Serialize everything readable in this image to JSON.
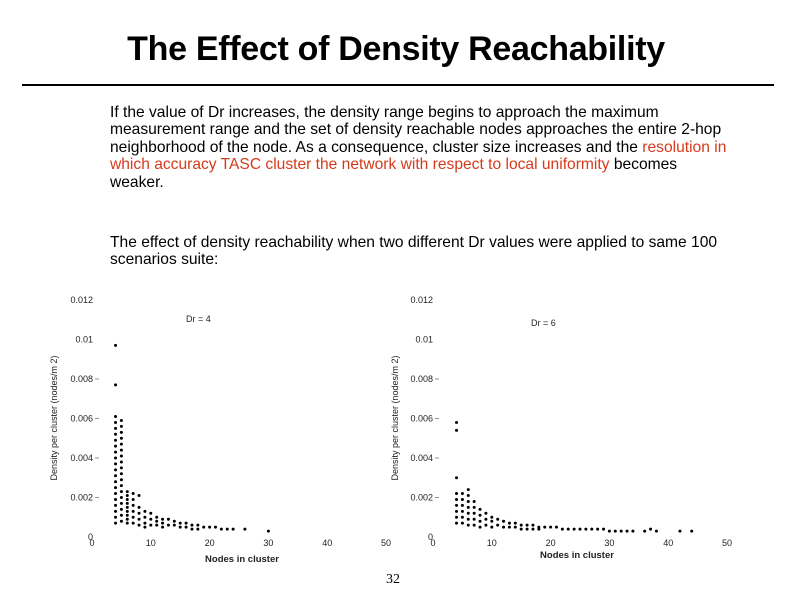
{
  "slide": {
    "title": "The Effect of Density Reachability",
    "para1_before": "If the value of Dr increases, the density range begins to approach the maximum measurement range and the set of density reachable nodes approaches the entire 2-hop neighborhood of the node. As a consequence, cluster size increases and the ",
    "para1_highlight": "resolution in which accuracy TASC cluster the network with respect to local uniformity",
    "para1_after": " becomes weaker.",
    "para2": "The effect of density reachability when two different Dr values were applied to same 100 scenarios suite:",
    "page_number": "32",
    "highlight_color": "#d63a1a"
  },
  "chart_data": [
    {
      "type": "scatter",
      "title": "Dr = 4",
      "xlabel": "Nodes in cluster",
      "ylabel": "Density per cluster (nodes/m 2)",
      "xlim": [
        0,
        50
      ],
      "ylim": [
        0,
        0.012
      ],
      "xticks": [
        "0",
        "10",
        "20",
        "30",
        "40",
        "50"
      ],
      "yticks": [
        "0",
        "0.002",
        "0.004",
        "0.006",
        "0.008",
        "0.01",
        "0.012"
      ],
      "points": [
        [
          4,
          0.0097
        ],
        [
          4,
          0.0077
        ],
        [
          4,
          0.0061
        ],
        [
          4,
          0.0058
        ],
        [
          4,
          0.0055
        ],
        [
          4,
          0.0052
        ],
        [
          4,
          0.0049
        ],
        [
          4,
          0.0046
        ],
        [
          4,
          0.0043
        ],
        [
          4,
          0.004
        ],
        [
          4,
          0.0037
        ],
        [
          4,
          0.0034
        ],
        [
          4,
          0.0031
        ],
        [
          4,
          0.0028
        ],
        [
          4,
          0.0025
        ],
        [
          4,
          0.0022
        ],
        [
          4,
          0.0019
        ],
        [
          4,
          0.0016
        ],
        [
          4,
          0.0013
        ],
        [
          4,
          0.001
        ],
        [
          4,
          0.0007
        ],
        [
          5,
          0.0059
        ],
        [
          5,
          0.0056
        ],
        [
          5,
          0.0053
        ],
        [
          5,
          0.005
        ],
        [
          5,
          0.0047
        ],
        [
          5,
          0.0044
        ],
        [
          5,
          0.0041
        ],
        [
          5,
          0.0038
        ],
        [
          5,
          0.0035
        ],
        [
          5,
          0.0032
        ],
        [
          5,
          0.0029
        ],
        [
          5,
          0.0026
        ],
        [
          5,
          0.0023
        ],
        [
          5,
          0.002
        ],
        [
          5,
          0.0017
        ],
        [
          5,
          0.0014
        ],
        [
          5,
          0.0011
        ],
        [
          5,
          0.0008
        ],
        [
          6,
          0.0023
        ],
        [
          6,
          0.0021
        ],
        [
          6,
          0.0019
        ],
        [
          6,
          0.0017
        ],
        [
          6,
          0.0015
        ],
        [
          6,
          0.0013
        ],
        [
          6,
          0.0011
        ],
        [
          6,
          0.0009
        ],
        [
          6,
          0.0007
        ],
        [
          7,
          0.0022
        ],
        [
          7,
          0.0019
        ],
        [
          7,
          0.0016
        ],
        [
          7,
          0.0013
        ],
        [
          7,
          0.001
        ],
        [
          7,
          0.0007
        ],
        [
          8,
          0.0021
        ],
        [
          8,
          0.0015
        ],
        [
          8,
          0.0012
        ],
        [
          8,
          0.0009
        ],
        [
          8,
          0.0006
        ],
        [
          9,
          0.0013
        ],
        [
          9,
          0.001
        ],
        [
          9,
          0.0007
        ],
        [
          9,
          0.0005
        ],
        [
          10,
          0.0012
        ],
        [
          10,
          0.0009
        ],
        [
          10,
          0.0006
        ],
        [
          11,
          0.001
        ],
        [
          11,
          0.0008
        ],
        [
          11,
          0.0006
        ],
        [
          12,
          0.0009
        ],
        [
          12,
          0.0007
        ],
        [
          12,
          0.0005
        ],
        [
          13,
          0.0009
        ],
        [
          13,
          0.0006
        ],
        [
          14,
          0.0008
        ],
        [
          14,
          0.0006
        ],
        [
          15,
          0.0007
        ],
        [
          15,
          0.0005
        ],
        [
          16,
          0.0007
        ],
        [
          16,
          0.0005
        ],
        [
          17,
          0.0006
        ],
        [
          17,
          0.0004
        ],
        [
          18,
          0.0006
        ],
        [
          18,
          0.0004
        ],
        [
          19,
          0.0005
        ],
        [
          20,
          0.0005
        ],
        [
          21,
          0.0005
        ],
        [
          22,
          0.0004
        ],
        [
          23,
          0.0004
        ],
        [
          24,
          0.0004
        ],
        [
          26,
          0.0004
        ],
        [
          30,
          0.0003
        ]
      ]
    },
    {
      "type": "scatter",
      "title": "Dr = 6",
      "xlabel": "Nodes in cluster",
      "ylabel": "Density per cluster (nodes/m 2)",
      "xlim": [
        0,
        50
      ],
      "ylim": [
        0,
        0.012
      ],
      "xticks": [
        "0",
        "10",
        "20",
        "30",
        "40",
        "50"
      ],
      "yticks": [
        "0",
        "0.002",
        "0.004",
        "0.006",
        "0.008",
        "0.01",
        "0.012"
      ],
      "points": [
        [
          4,
          0.0058
        ],
        [
          4,
          0.0054
        ],
        [
          4,
          0.003
        ],
        [
          4,
          0.0022
        ],
        [
          4,
          0.0019
        ],
        [
          4,
          0.0016
        ],
        [
          4,
          0.0013
        ],
        [
          4,
          0.001
        ],
        [
          4,
          0.0007
        ],
        [
          5,
          0.0022
        ],
        [
          5,
          0.0019
        ],
        [
          5,
          0.0016
        ],
        [
          5,
          0.0013
        ],
        [
          5,
          0.001
        ],
        [
          5,
          0.0007
        ],
        [
          6,
          0.0024
        ],
        [
          6,
          0.0021
        ],
        [
          6,
          0.0018
        ],
        [
          6,
          0.0015
        ],
        [
          6,
          0.0012
        ],
        [
          6,
          0.0009
        ],
        [
          6,
          0.0006
        ],
        [
          7,
          0.0018
        ],
        [
          7,
          0.0015
        ],
        [
          7,
          0.0012
        ],
        [
          7,
          0.0009
        ],
        [
          7,
          0.0006
        ],
        [
          8,
          0.0014
        ],
        [
          8,
          0.0011
        ],
        [
          8,
          0.0008
        ],
        [
          8,
          0.0005
        ],
        [
          9,
          0.0012
        ],
        [
          9,
          0.0009
        ],
        [
          9,
          0.0006
        ],
        [
          10,
          0.001
        ],
        [
          10,
          0.0008
        ],
        [
          10,
          0.0005
        ],
        [
          11,
          0.0009
        ],
        [
          11,
          0.0006
        ],
        [
          12,
          0.0008
        ],
        [
          12,
          0.0005
        ],
        [
          13,
          0.0007
        ],
        [
          13,
          0.0005
        ],
        [
          14,
          0.0007
        ],
        [
          14,
          0.0005
        ],
        [
          15,
          0.0006
        ],
        [
          15,
          0.0004
        ],
        [
          16,
          0.0006
        ],
        [
          16,
          0.0004
        ],
        [
          17,
          0.0006
        ],
        [
          17,
          0.0004
        ],
        [
          18,
          0.0005
        ],
        [
          18,
          0.0004
        ],
        [
          19,
          0.0005
        ],
        [
          20,
          0.0005
        ],
        [
          21,
          0.0005
        ],
        [
          22,
          0.0004
        ],
        [
          23,
          0.0004
        ],
        [
          24,
          0.0004
        ],
        [
          25,
          0.0004
        ],
        [
          26,
          0.0004
        ],
        [
          27,
          0.0004
        ],
        [
          28,
          0.0004
        ],
        [
          29,
          0.0004
        ],
        [
          30,
          0.0003
        ],
        [
          31,
          0.0003
        ],
        [
          32,
          0.0003
        ],
        [
          33,
          0.0003
        ],
        [
          34,
          0.0003
        ],
        [
          36,
          0.0003
        ],
        [
          37,
          0.0004
        ],
        [
          38,
          0.0003
        ],
        [
          42,
          0.0003
        ],
        [
          44,
          0.0003
        ]
      ]
    }
  ]
}
